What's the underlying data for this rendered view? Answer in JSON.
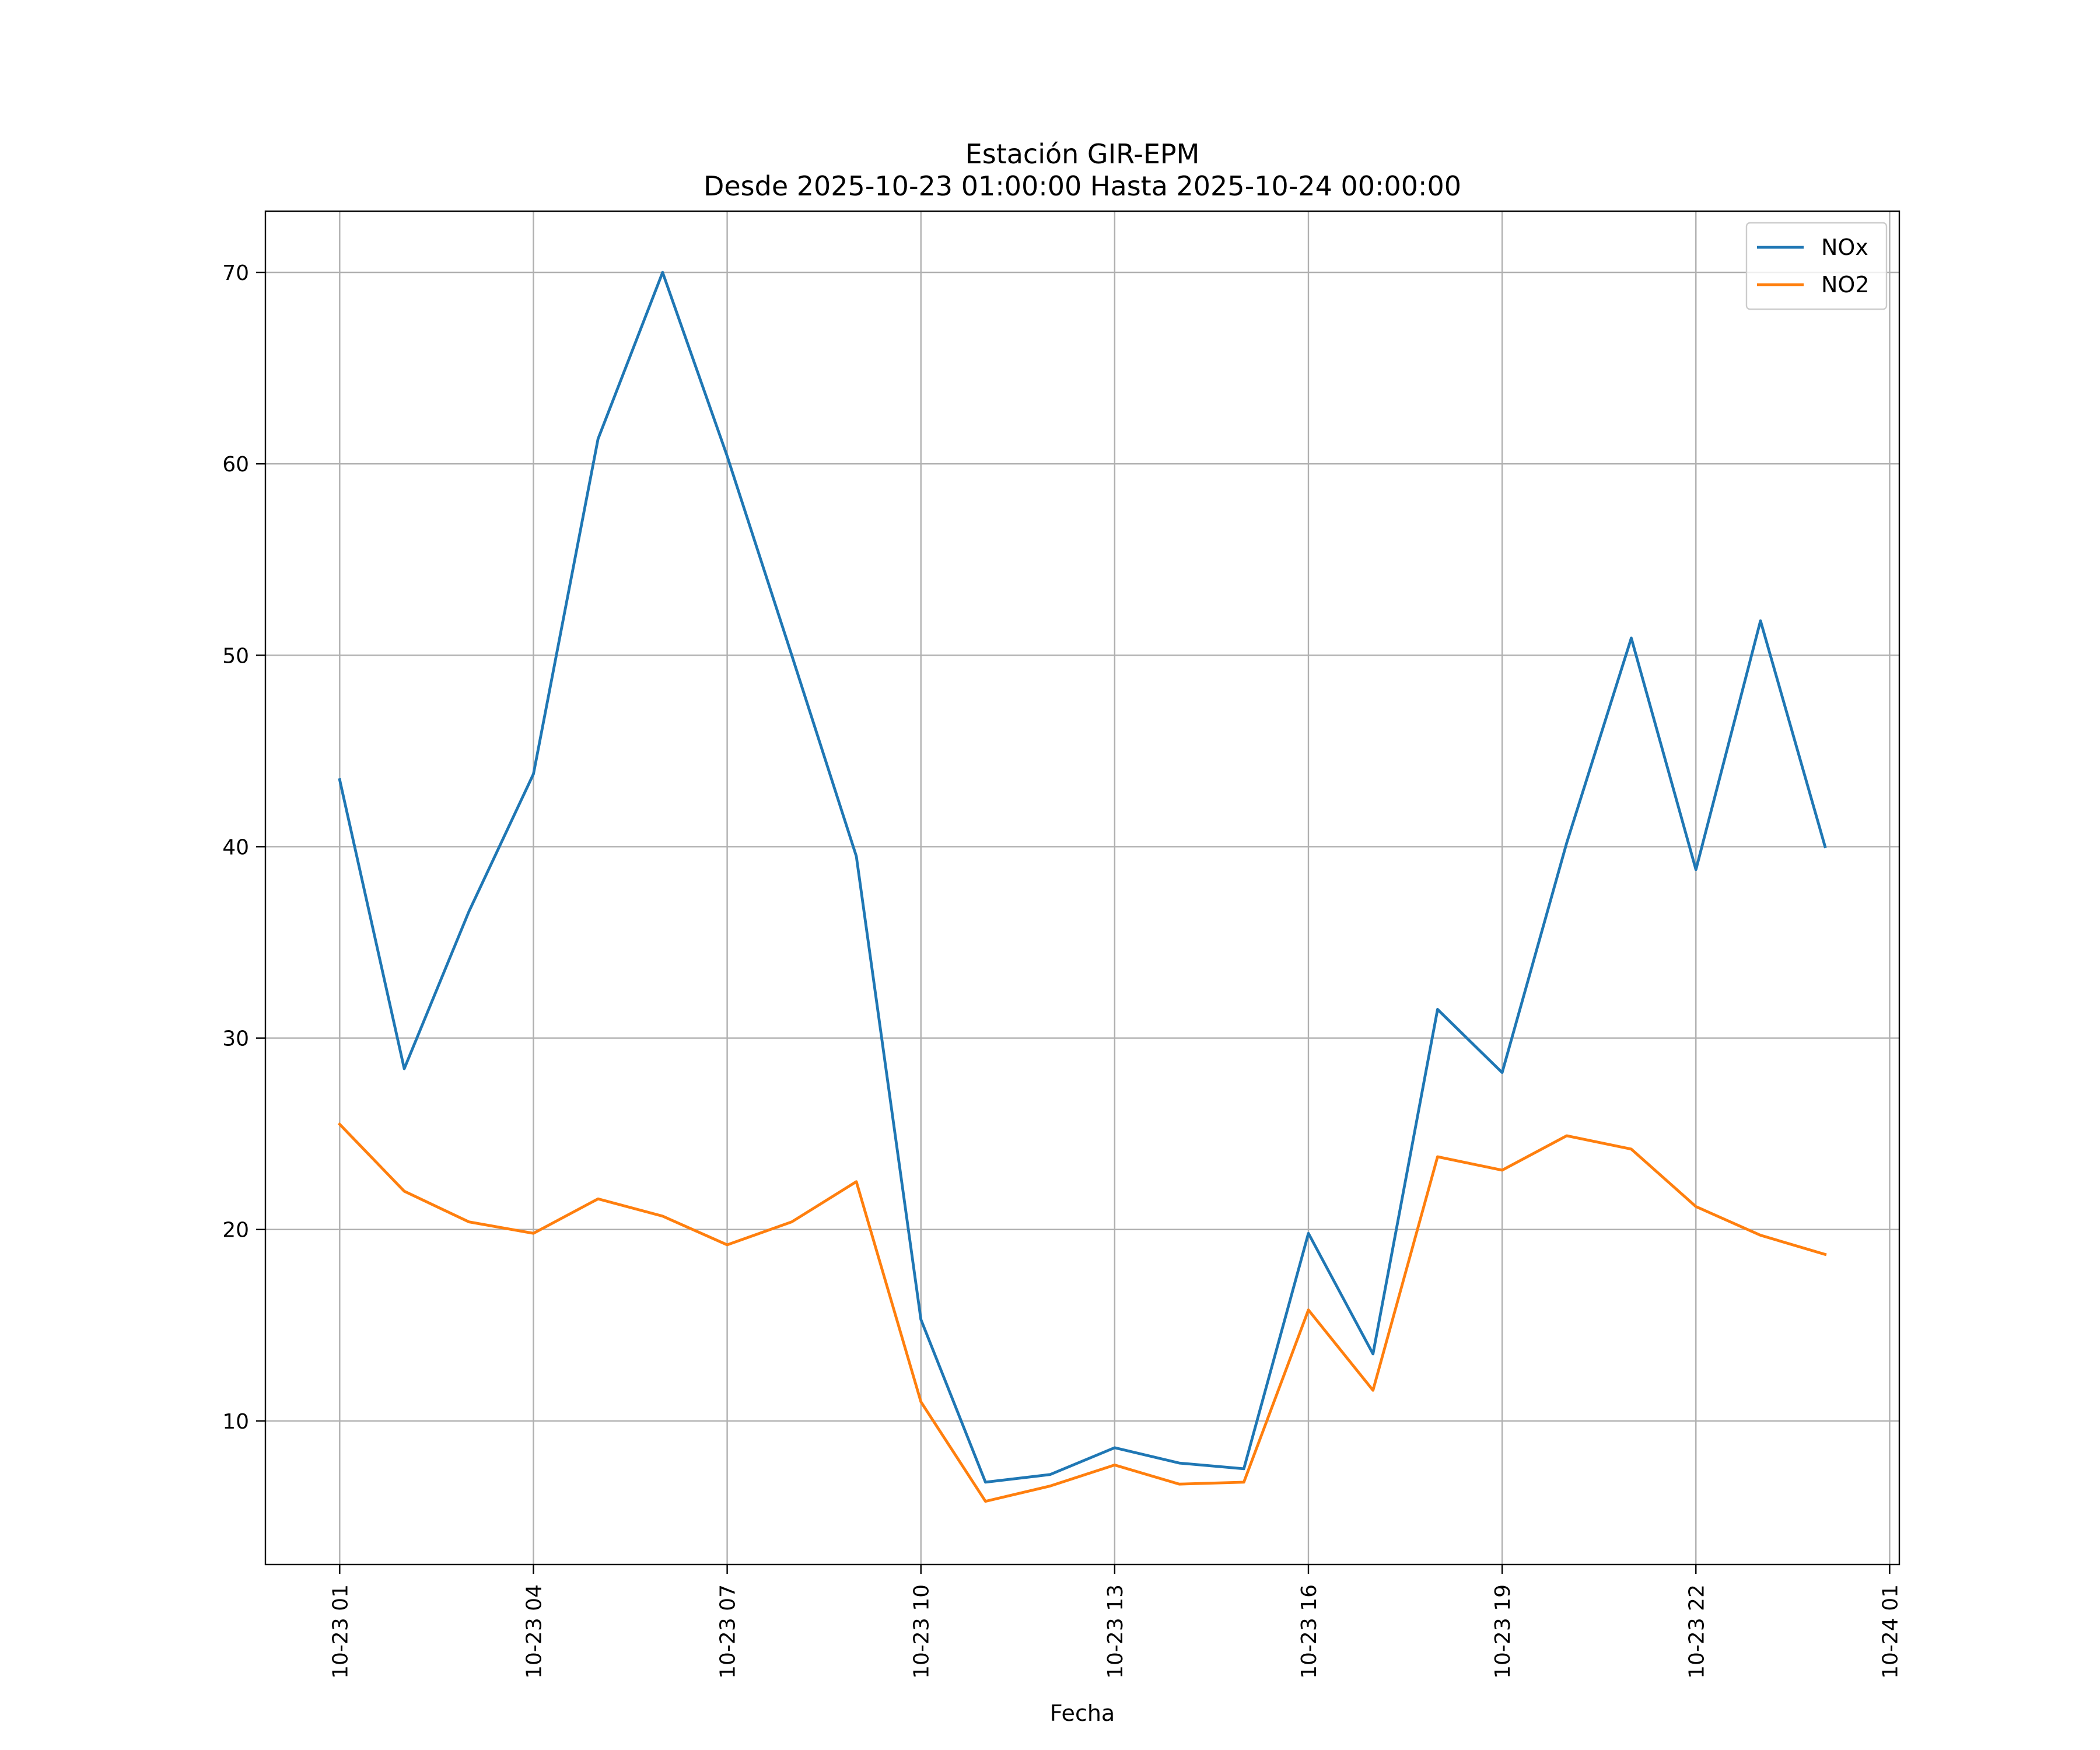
{
  "chart_data": {
    "type": "line",
    "title_line1": "Estación GIR-EPM",
    "title_line2": "Desde 2025-10-23 01:00:00 Hasta 2025-10-24 00:00:00",
    "xlabel": "Fecha",
    "ylabel": "",
    "x_hours": [
      0,
      1,
      2,
      3,
      4,
      5,
      6,
      7,
      8,
      9,
      10,
      11,
      12,
      13,
      14,
      15,
      16,
      17,
      18,
      19,
      20,
      21,
      22,
      23
    ],
    "x_range_hours": [
      -1.15,
      24.15
    ],
    "ylim": [
      2.5,
      73.2
    ],
    "x_ticks": [
      {
        "hour": 0,
        "label": "10-23 01"
      },
      {
        "hour": 3,
        "label": "10-23 04"
      },
      {
        "hour": 6,
        "label": "10-23 07"
      },
      {
        "hour": 9,
        "label": "10-23 10"
      },
      {
        "hour": 12,
        "label": "10-23 13"
      },
      {
        "hour": 15,
        "label": "10-23 16"
      },
      {
        "hour": 18,
        "label": "10-23 19"
      },
      {
        "hour": 21,
        "label": "10-23 22"
      },
      {
        "hour": 24,
        "label": "10-24 01"
      }
    ],
    "y_ticks": [
      {
        "value": 10,
        "label": "10"
      },
      {
        "value": 20,
        "label": "20"
      },
      {
        "value": 30,
        "label": "30"
      },
      {
        "value": 40,
        "label": "40"
      },
      {
        "value": 50,
        "label": "50"
      },
      {
        "value": 60,
        "label": "60"
      },
      {
        "value": 70,
        "label": "70"
      }
    ],
    "grid": true,
    "legend_position": "top-right",
    "series": [
      {
        "name": "NOx",
        "color": "#1f77b4",
        "values": [
          43.5,
          28.4,
          36.6,
          43.8,
          61.3,
          70.0,
          60.4,
          50.0,
          39.5,
          15.3,
          6.8,
          7.2,
          8.6,
          7.8,
          7.5,
          19.8,
          13.5,
          31.5,
          28.2,
          40.2,
          50.9,
          38.8,
          51.8,
          40.0
        ]
      },
      {
        "name": "NO2",
        "color": "#ff7f0e",
        "values": [
          25.5,
          22.0,
          20.4,
          19.8,
          21.6,
          20.7,
          19.2,
          20.4,
          22.5,
          11.0,
          5.8,
          6.6,
          7.7,
          6.7,
          6.8,
          15.8,
          11.6,
          23.8,
          23.1,
          24.9,
          24.2,
          21.2,
          19.7,
          18.7
        ]
      }
    ]
  }
}
